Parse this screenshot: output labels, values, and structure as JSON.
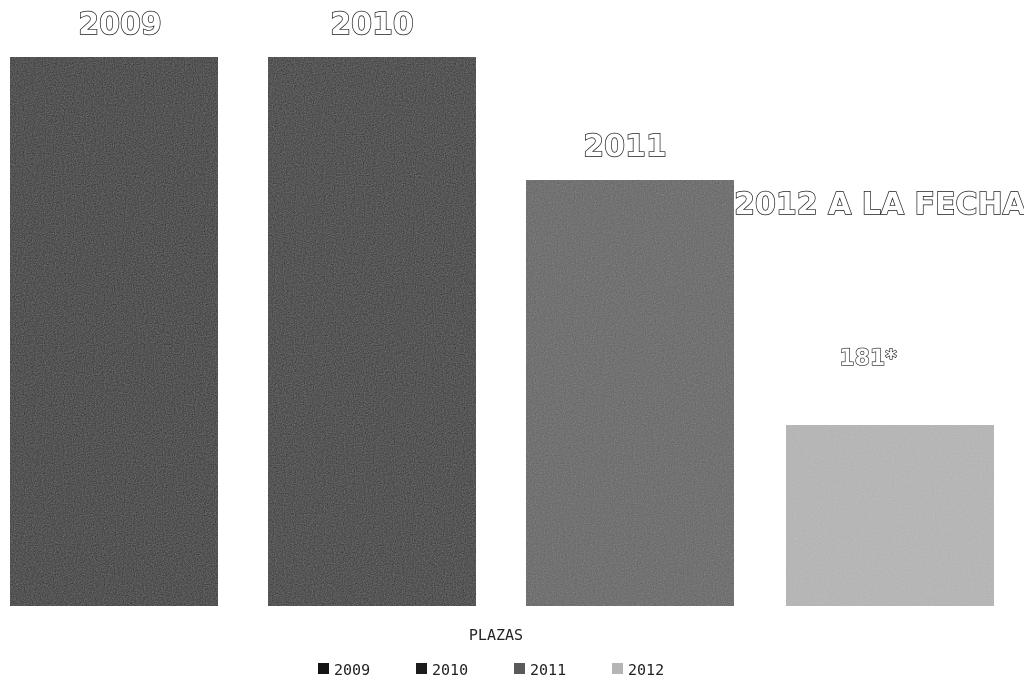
{
  "chart_data": {
    "type": "bar",
    "categories": [
      "2009",
      "2010",
      "2011",
      "2012 A LA FECHA"
    ],
    "values": [
      549,
      549,
      426,
      181
    ],
    "data_labels": [
      "",
      "",
      "",
      "181*"
    ],
    "xlabel": "PLAZAS",
    "ylabel": "",
    "legend": {
      "placement": "bottom",
      "entries": [
        "2009",
        "2010",
        "2011",
        "2012"
      ]
    },
    "grid": false,
    "colors": [
      "#141414",
      "#1c1c1c",
      "#5a5a5a",
      "#b5b5b5"
    ]
  }
}
